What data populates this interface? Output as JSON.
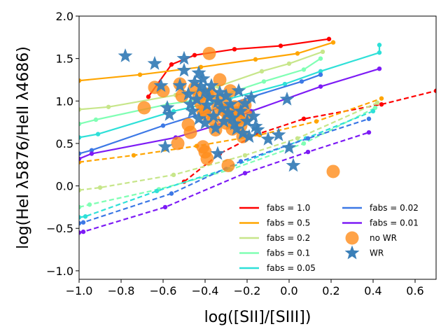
{
  "chart_data": {
    "type": "scatter",
    "xlabel": "log([SII]/[SIII])",
    "ylabel": "log(HeI λ5876/HeII λ4686)",
    "xlim": [
      -1.0,
      0.7
    ],
    "ylim": [
      -1.1,
      2.0
    ],
    "xticks": [
      -1.0,
      -0.8,
      -0.6,
      -0.4,
      -0.2,
      0.0,
      0.2,
      0.4,
      0.6
    ],
    "xtick_labels": [
      "−1.0",
      "−0.8",
      "−0.6",
      "−0.4",
      "−0.2",
      "0.0",
      "0.2",
      "0.4",
      "0.6"
    ],
    "yticks": [
      -1.0,
      -0.5,
      0.0,
      0.5,
      1.0,
      1.5,
      2.0
    ],
    "ytick_labels": [
      "−1.0",
      "−0.5",
      "0.0",
      "0.5",
      "1.0",
      "1.5",
      "2.0"
    ],
    "grid": false,
    "legend_position": "lower-right",
    "model_lines": [
      {
        "name": "fabs = 1.0",
        "color": "#ff0000",
        "solid": [
          [
            -0.67,
            1.05
          ],
          [
            -0.56,
            1.43
          ],
          [
            -0.45,
            1.54
          ],
          [
            -0.26,
            1.61
          ],
          [
            -0.04,
            1.65
          ],
          [
            0.19,
            1.73
          ]
        ],
        "dashed": [
          [
            -0.5,
            0.05
          ],
          [
            -0.33,
            0.38
          ],
          [
            -0.15,
            0.61
          ],
          [
            0.07,
            0.79
          ],
          [
            0.44,
            0.96
          ],
          [
            0.7,
            1.12
          ]
        ]
      },
      {
        "name": "fabs = 0.5",
        "color": "#ffa500",
        "solid": [
          [
            -1.0,
            1.24
          ],
          [
            -0.71,
            1.31
          ],
          [
            -0.42,
            1.4
          ],
          [
            -0.16,
            1.49
          ],
          [
            0.04,
            1.56
          ],
          [
            0.21,
            1.69
          ]
        ],
        "dashed": [
          [
            -1.0,
            0.28
          ],
          [
            -0.74,
            0.36
          ],
          [
            -0.44,
            0.47
          ],
          [
            -0.14,
            0.6
          ],
          [
            0.13,
            0.76
          ],
          [
            0.44,
            1.03
          ]
        ]
      },
      {
        "name": "fabs = 0.2",
        "color": "#c7e68a",
        "solid": [
          [
            -1.0,
            0.9
          ],
          [
            -0.86,
            0.93
          ],
          [
            -0.54,
            1.07
          ],
          [
            -0.34,
            1.17
          ],
          [
            -0.13,
            1.35
          ],
          [
            0.0,
            1.44
          ],
          [
            0.16,
            1.58
          ]
        ],
        "dashed": [
          [
            -1.0,
            -0.05
          ],
          [
            -0.9,
            -0.02
          ],
          [
            -0.55,
            0.13
          ],
          [
            -0.21,
            0.36
          ],
          [
            0.04,
            0.56
          ],
          [
            0.42,
            0.98
          ]
        ]
      },
      {
        "name": "fabs = 0.1",
        "color": "#80ffb4",
        "solid": [
          [
            -1.0,
            0.73
          ],
          [
            -0.92,
            0.78
          ],
          [
            -0.58,
            0.96
          ],
          [
            -0.34,
            1.05
          ],
          [
            -0.12,
            1.23
          ],
          [
            0.07,
            1.37
          ],
          [
            0.15,
            1.5
          ]
        ],
        "dashed": [
          [
            -1.0,
            -0.25
          ],
          [
            -0.95,
            -0.22
          ],
          [
            -0.62,
            -0.04
          ],
          [
            -0.28,
            0.19
          ],
          [
            0.07,
            0.5
          ],
          [
            0.41,
            0.92
          ]
        ]
      },
      {
        "name": "fabs = 0.05",
        "color": "#2ee0d8",
        "solid": [
          [
            -1.0,
            0.57
          ],
          [
            -0.91,
            0.61
          ],
          [
            -0.55,
            0.88
          ],
          [
            -0.28,
            1.03
          ],
          [
            -0.02,
            1.2
          ],
          [
            0.15,
            1.35
          ],
          [
            0.43,
            1.57
          ],
          [
            0.43,
            1.66
          ]
        ],
        "dashed": [
          [
            -1.0,
            -0.37
          ],
          [
            -0.97,
            -0.36
          ],
          [
            -0.63,
            -0.06
          ],
          [
            -0.3,
            0.2
          ],
          [
            0.08,
            0.56
          ],
          [
            0.4,
            0.88
          ]
        ]
      },
      {
        "name": "fabs = 0.02",
        "color": "#3c78e6",
        "solid": [
          [
            -1.0,
            0.38
          ],
          [
            -0.94,
            0.42
          ],
          [
            -0.6,
            0.71
          ],
          [
            -0.38,
            0.88
          ],
          [
            -0.19,
            1.04
          ],
          [
            0.06,
            1.23
          ],
          [
            0.15,
            1.31
          ]
        ],
        "dashed": [
          [
            -1.0,
            -0.44
          ],
          [
            -0.98,
            -0.43
          ],
          [
            -0.56,
            -0.09
          ],
          [
            -0.23,
            0.29
          ],
          [
            0.09,
            0.56
          ],
          [
            0.38,
            0.79
          ]
        ]
      },
      {
        "name": "fabs = 0.01",
        "color": "#7d1bf5",
        "solid": [
          [
            -1.0,
            0.32
          ],
          [
            -0.94,
            0.38
          ],
          [
            -0.54,
            0.57
          ],
          [
            -0.35,
            0.71
          ],
          [
            -0.18,
            0.88
          ],
          [
            0.15,
            1.17
          ],
          [
            0.43,
            1.38
          ]
        ],
        "dashed": [
          [
            -1.0,
            -0.55
          ],
          [
            -0.98,
            -0.54
          ],
          [
            -0.59,
            -0.25
          ],
          [
            -0.21,
            0.15
          ],
          [
            0.09,
            0.4
          ],
          [
            0.38,
            0.63
          ]
        ]
      }
    ],
    "scatter_series": [
      {
        "name": "no WR",
        "color": "#ff8c1a",
        "marker": "circle",
        "points": [
          [
            -0.69,
            0.92
          ],
          [
            -0.64,
            1.16
          ],
          [
            -0.6,
            1.12
          ],
          [
            -0.52,
            1.2
          ],
          [
            -0.51,
            1.06
          ],
          [
            -0.48,
            0.72
          ],
          [
            -0.47,
            0.63
          ],
          [
            -0.53,
            0.5
          ],
          [
            -0.45,
            1.15
          ],
          [
            -0.43,
            1.05
          ],
          [
            -0.42,
            0.97
          ],
          [
            -0.41,
            0.88
          ],
          [
            -0.4,
            0.85
          ],
          [
            -0.39,
            1.08
          ],
          [
            -0.38,
            1.56
          ],
          [
            -0.37,
            1.08
          ],
          [
            -0.36,
            0.78
          ],
          [
            -0.35,
            0.66
          ],
          [
            -0.34,
            0.92
          ],
          [
            -0.33,
            1.25
          ],
          [
            -0.32,
            1.01
          ],
          [
            -0.31,
            0.89
          ],
          [
            -0.3,
            0.74
          ],
          [
            -0.29,
            0.82
          ],
          [
            -0.28,
            1.12
          ],
          [
            -0.27,
            0.67
          ],
          [
            -0.26,
            0.93
          ],
          [
            -0.25,
            0.86
          ],
          [
            -0.24,
            0.79
          ],
          [
            -0.23,
            0.71
          ],
          [
            -0.22,
            0.58
          ],
          [
            -0.21,
            0.95
          ],
          [
            -0.2,
            0.82
          ],
          [
            -0.41,
            0.46
          ],
          [
            -0.4,
            0.4
          ],
          [
            -0.39,
            0.32
          ],
          [
            -0.29,
            0.24
          ],
          [
            0.21,
            0.17
          ]
        ]
      },
      {
        "name": "WR",
        "color": "#3a7fb8",
        "marker": "star",
        "points": [
          [
            -0.78,
            1.53
          ],
          [
            -0.64,
            1.44
          ],
          [
            -0.5,
            1.5
          ],
          [
            -0.61,
            1.18
          ],
          [
            -0.58,
            0.92
          ],
          [
            -0.57,
            0.84
          ],
          [
            -0.59,
            0.46
          ],
          [
            -0.52,
            1.18
          ],
          [
            -0.5,
            1.36
          ],
          [
            -0.48,
            1.08
          ],
          [
            -0.47,
            0.96
          ],
          [
            -0.46,
            0.88
          ],
          [
            -0.45,
            1.22
          ],
          [
            -0.44,
            1.02
          ],
          [
            -0.43,
            0.79
          ],
          [
            -0.43,
            1.33
          ],
          [
            -0.42,
            1.17
          ],
          [
            -0.41,
            1.26
          ],
          [
            -0.4,
            1.11
          ],
          [
            -0.4,
            0.74
          ],
          [
            -0.39,
            0.95
          ],
          [
            -0.38,
            1.04
          ],
          [
            -0.37,
            1.18
          ],
          [
            -0.36,
            0.82
          ],
          [
            -0.35,
            0.68
          ],
          [
            -0.34,
            0.99
          ],
          [
            -0.33,
            1.1
          ],
          [
            -0.32,
            0.91
          ],
          [
            -0.31,
            0.76
          ],
          [
            -0.3,
            1.06
          ],
          [
            -0.29,
            0.86
          ],
          [
            -0.28,
            0.96
          ],
          [
            -0.27,
            0.8
          ],
          [
            -0.26,
            0.73
          ],
          [
            -0.25,
            0.67
          ],
          [
            -0.24,
            1.12
          ],
          [
            -0.23,
            0.88
          ],
          [
            -0.22,
            0.62
          ],
          [
            -0.21,
            0.97
          ],
          [
            -0.2,
            0.76
          ],
          [
            -0.19,
            0.58
          ],
          [
            -0.18,
            1.04
          ],
          [
            -0.17,
            0.82
          ],
          [
            -0.16,
            0.7
          ],
          [
            -0.15,
            0.66
          ],
          [
            -0.34,
            0.38
          ],
          [
            -0.1,
            0.55
          ],
          [
            -0.05,
            0.6
          ],
          [
            -0.01,
            1.02
          ],
          [
            0.0,
            0.45
          ],
          [
            0.02,
            0.24
          ]
        ]
      }
    ]
  }
}
